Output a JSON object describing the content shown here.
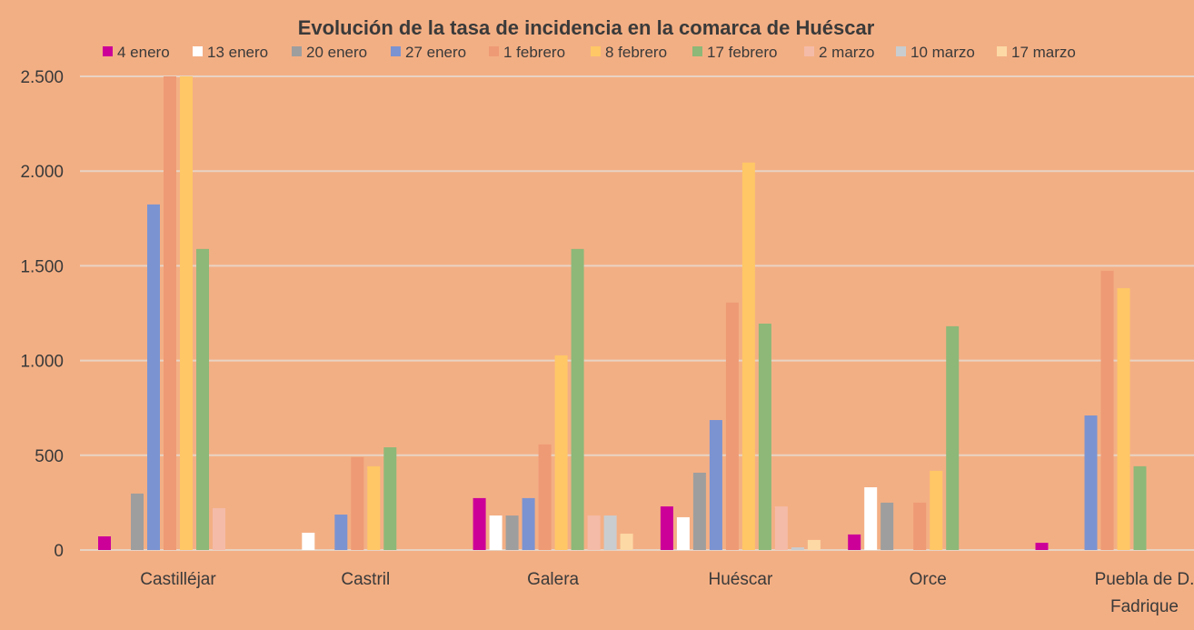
{
  "chart_data": {
    "type": "bar",
    "title": "Evolución de la tasa de incidencia en la comarca de Huéscar",
    "xlabel": "",
    "ylabel": "",
    "ylim": [
      0,
      2500
    ],
    "yticks": [
      0,
      500,
      1000,
      1500,
      2000,
      2500
    ],
    "ytick_labels": [
      "0",
      "500",
      "1.000",
      "1.500",
      "2.000",
      "2.500"
    ],
    "grid": true,
    "legend_position": "top",
    "categories": [
      "Castilléjar",
      "Castril",
      "Galera",
      "Huéscar",
      "Orce",
      "Puebla de D. Fadrique"
    ],
    "category_lines": [
      [
        "Castilléjar"
      ],
      [
        "Castril"
      ],
      [
        "Galera"
      ],
      [
        "Huéscar"
      ],
      [
        "Orce"
      ],
      [
        "Puebla de D.",
        "Fadrique"
      ]
    ],
    "series": [
      {
        "name": "4 enero",
        "color": "#CC0099",
        "values": [
          72,
          0,
          274,
          230,
          82,
          38
        ]
      },
      {
        "name": "13 enero",
        "color": "#FFFFFF",
        "values": [
          0,
          91,
          182,
          173,
          331,
          0
        ]
      },
      {
        "name": "20 enero",
        "color": "#9E9E9E",
        "values": [
          298,
          0,
          182,
          408,
          250,
          0
        ]
      },
      {
        "name": "27 enero",
        "color": "#7B93D1",
        "values": [
          1824,
          187,
          274,
          686,
          0,
          710
        ]
      },
      {
        "name": "1 febrero",
        "color": "#EE9A74",
        "values": [
          2500,
          490,
          557,
          1306,
          250,
          1474
        ]
      },
      {
        "name": "8 febrero",
        "color": "#FFC766",
        "values": [
          2500,
          442,
          1027,
          2045,
          418,
          1382
        ]
      },
      {
        "name": "17 febrero",
        "color": "#8DB878",
        "values": [
          1589,
          542,
          1589,
          1195,
          1181,
          442
        ]
      },
      {
        "name": "2 marzo",
        "color": "#F4BBA8",
        "values": [
          221,
          0,
          182,
          230,
          0,
          0
        ]
      },
      {
        "name": "10 marzo",
        "color": "#C9CDD0",
        "values": [
          0,
          0,
          182,
          14,
          0,
          0
        ]
      },
      {
        "name": "17 marzo",
        "color": "#FDD9A6",
        "values": [
          0,
          0,
          86,
          53,
          0,
          0
        ]
      }
    ]
  }
}
